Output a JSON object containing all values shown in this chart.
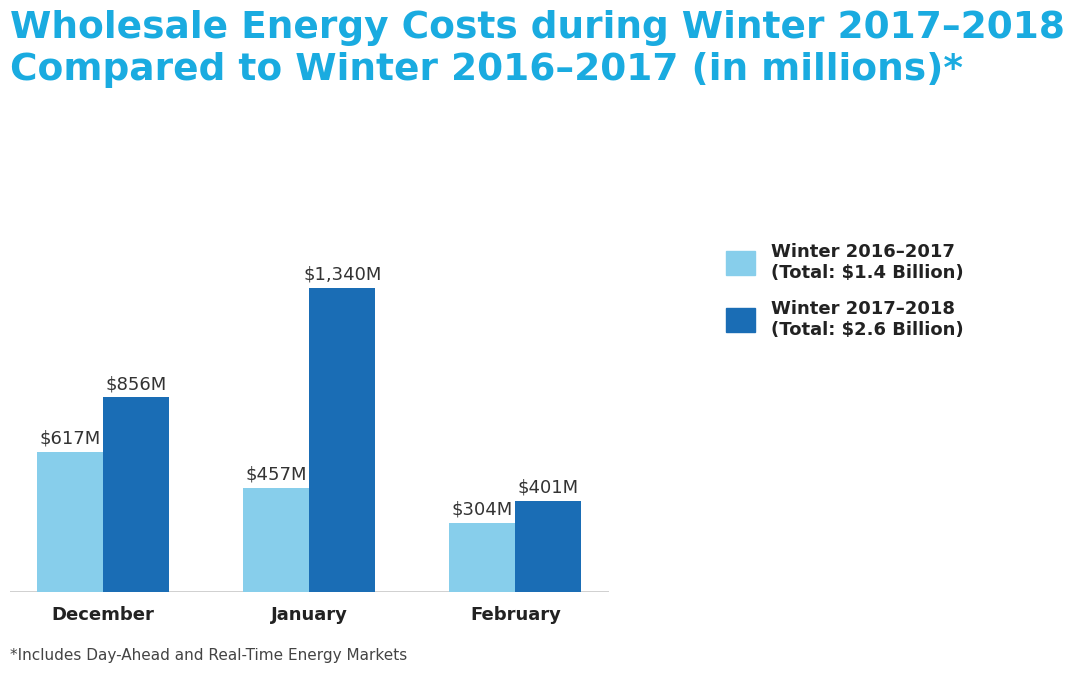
{
  "title_line1": "Wholesale Energy Costs during Winter 2017–2018",
  "title_line2": "Compared to Winter 2016–2017 (in millions)*",
  "title_color": "#1AABE0",
  "background_color": "#FFFFFF",
  "categories": [
    "December",
    "January",
    "February"
  ],
  "values_2016_2017": [
    617,
    457,
    304
  ],
  "values_2017_2018": [
    856,
    1340,
    401
  ],
  "labels_2016_2017": [
    "$617M",
    "$457M",
    "$304M"
  ],
  "labels_2017_2018": [
    "$856M",
    "$1,340M",
    "$401M"
  ],
  "color_2016_2017": "#87CEEB",
  "color_2017_2018": "#1A6DB5",
  "legend_label_2016_2017": "Winter 2016–2017\n(Total: $1.4 Billion)",
  "legend_label_2017_2018": "Winter 2017–2018\n(Total: $2.6 Billion)",
  "footnote": "*Includes Day-Ahead and Real-Time Energy Markets",
  "bar_width": 0.32,
  "ylim": [
    0,
    1550
  ],
  "value_label_color": "#333333",
  "value_label_fontsize": 13,
  "category_fontsize": 13,
  "legend_fontsize": 13,
  "title_fontsize": 27,
  "footnote_fontsize": 11
}
